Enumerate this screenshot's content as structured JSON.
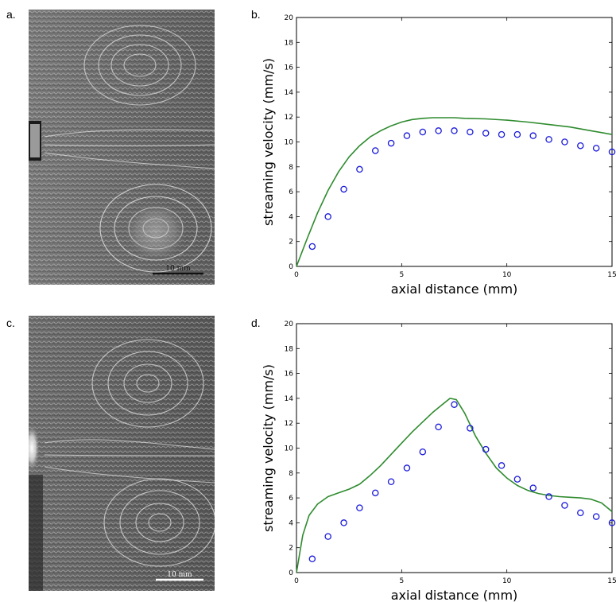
{
  "panels": {
    "a": "a.",
    "b": "b.",
    "c": "c.",
    "d": "d."
  },
  "photos": [
    {
      "id": "a",
      "scale_label": "10 mm",
      "variant": "uniform-flow"
    },
    {
      "id": "c",
      "scale_label": "10 mm",
      "variant": "bright-source"
    }
  ],
  "colors": {
    "line": "#2e8b2e",
    "markers": "#1a1adb",
    "axis": "#000000"
  },
  "chart_data": [
    {
      "id": "b",
      "type": "line",
      "xlabel": "axial distance (mm)",
      "ylabel": "streaming velocity (mm/s)",
      "xlim": [
        0,
        15
      ],
      "ylim": [
        0,
        20
      ],
      "xticks": [
        0,
        5,
        10,
        15
      ],
      "xtick_labels": [
        "0",
        "5",
        "10",
        "15"
      ],
      "yticks": [
        0,
        2,
        4,
        6,
        8,
        10,
        12,
        14,
        16,
        18,
        20
      ],
      "grid": false,
      "series": [
        {
          "kind": "line",
          "x": [
            0,
            0.5,
            1,
            1.5,
            2,
            2.5,
            3,
            3.5,
            4,
            4.5,
            5,
            5.5,
            6,
            6.5,
            7,
            7.5,
            8,
            9,
            10,
            11,
            12,
            13,
            14,
            15
          ],
          "y": [
            0,
            2.2,
            4.3,
            6.1,
            7.6,
            8.8,
            9.7,
            10.4,
            10.9,
            11.3,
            11.6,
            11.8,
            11.9,
            11.95,
            11.95,
            11.95,
            11.9,
            11.85,
            11.75,
            11.6,
            11.4,
            11.2,
            10.9,
            10.6
          ]
        },
        {
          "kind": "scatter",
          "x": [
            0.75,
            1.5,
            2.25,
            3.0,
            3.75,
            4.5,
            5.25,
            6.0,
            6.75,
            7.5,
            8.25,
            9.0,
            9.75,
            10.5,
            11.25,
            12.0,
            12.75,
            13.5,
            14.25,
            15.0
          ],
          "y": [
            1.6,
            4.0,
            6.2,
            7.8,
            9.3,
            9.9,
            10.5,
            10.8,
            10.9,
            10.9,
            10.8,
            10.7,
            10.6,
            10.6,
            10.5,
            10.2,
            10.0,
            9.7,
            9.5,
            9.2
          ]
        }
      ]
    },
    {
      "id": "d",
      "type": "line",
      "xlabel": "axial distance (mm)",
      "ylabel": "streaming velocity (mm/s)",
      "xlim": [
        0,
        15
      ],
      "ylim": [
        0,
        20
      ],
      "xticks": [
        0,
        5,
        10,
        15
      ],
      "xtick_labels": [
        "0",
        "5",
        "10",
        "15"
      ],
      "yticks": [
        0,
        2,
        4,
        6,
        8,
        10,
        12,
        14,
        16,
        18,
        20
      ],
      "grid": false,
      "series": [
        {
          "kind": "line",
          "x": [
            0,
            0.3,
            0.6,
            1,
            1.5,
            2,
            2.5,
            3,
            3.5,
            4,
            4.5,
            5,
            5.5,
            6,
            6.5,
            7,
            7.3,
            7.6,
            8,
            8.5,
            9,
            9.5,
            10,
            10.5,
            11,
            11.5,
            12,
            12.5,
            13,
            13.5,
            14,
            14.5,
            15
          ],
          "y": [
            0,
            3.0,
            4.6,
            5.5,
            6.1,
            6.4,
            6.7,
            7.1,
            7.8,
            8.6,
            9.5,
            10.4,
            11.3,
            12.1,
            12.9,
            13.6,
            14.0,
            13.9,
            12.8,
            11.0,
            9.6,
            8.4,
            7.6,
            7.0,
            6.6,
            6.35,
            6.2,
            6.1,
            6.05,
            6.0,
            5.9,
            5.6,
            4.9
          ]
        },
        {
          "kind": "scatter",
          "x": [
            0.75,
            1.5,
            2.25,
            3.0,
            3.75,
            4.5,
            5.25,
            6.0,
            6.75,
            7.5,
            8.25,
            9.0,
            9.75,
            10.5,
            11.25,
            12.0,
            12.75,
            13.5,
            14.25,
            15.0
          ],
          "y": [
            1.1,
            2.9,
            4.0,
            5.2,
            6.4,
            7.3,
            8.4,
            9.7,
            11.7,
            13.5,
            11.6,
            9.9,
            8.6,
            7.5,
            6.8,
            6.1,
            5.4,
            4.8,
            4.5,
            4.0
          ]
        }
      ]
    }
  ]
}
